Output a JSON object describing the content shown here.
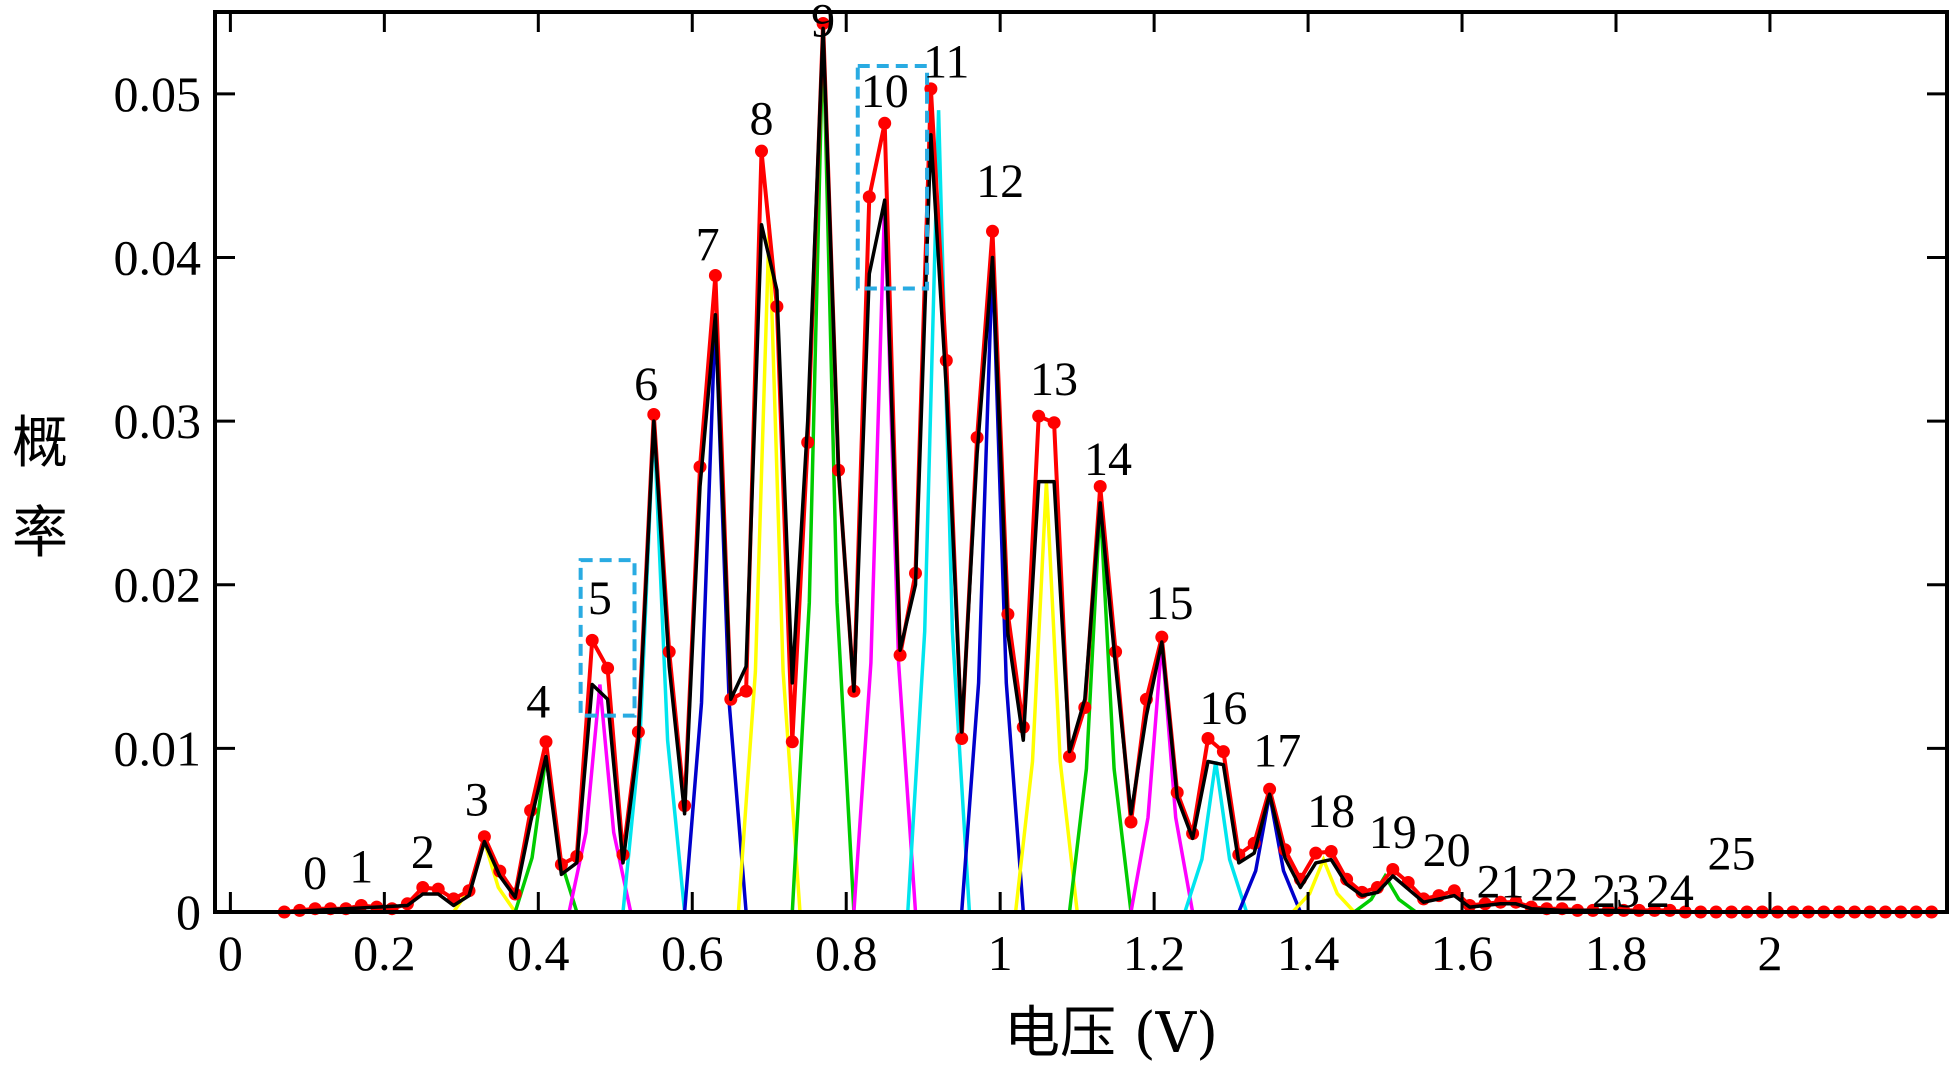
{
  "chart_data": {
    "type": "line",
    "title": "",
    "xlabel": "电压 (V)",
    "ylabel": "概率",
    "xlim": [
      -0.02,
      2.23
    ],
    "ylim": [
      0,
      0.055
    ],
    "x_ticks": [
      0,
      0.2,
      0.4,
      0.6,
      0.8,
      1,
      1.2,
      1.4,
      1.6,
      1.8,
      2
    ],
    "x_tick_labels": [
      "0",
      "0.2",
      "0.4",
      "0.6",
      "0.8",
      "1",
      "1.2",
      "1.4",
      "1.6",
      "1.8",
      "2"
    ],
    "y_ticks": [
      0,
      0.01,
      0.02,
      0.03,
      0.04,
      0.05
    ],
    "y_tick_labels": [
      "0",
      "0.01",
      "0.02",
      "0.03",
      "0.04",
      "0.05"
    ],
    "grid": false,
    "colors": {
      "red": "#ff0000",
      "black": "#000000",
      "box": "#29abe2",
      "components": [
        "#ffff00",
        "#00cc00",
        "#ff00ff",
        "#00e5ee",
        "#0000cc"
      ]
    },
    "series": [
      {
        "name": "red-markers",
        "color": "#ff0000",
        "points": [
          [
            0.07,
            0
          ],
          [
            0.09,
            0.0001
          ],
          [
            0.11,
            0.0002
          ],
          [
            0.13,
            0.0002
          ],
          [
            0.15,
            0.0002
          ],
          [
            0.17,
            0.0004
          ],
          [
            0.19,
            0.0003
          ],
          [
            0.21,
            0.0002
          ],
          [
            0.23,
            0.0005
          ],
          [
            0.25,
            0.0015
          ],
          [
            0.27,
            0.0014
          ],
          [
            0.29,
            0.0008
          ],
          [
            0.31,
            0.0013
          ],
          [
            0.33,
            0.0046
          ],
          [
            0.35,
            0.0025
          ],
          [
            0.37,
            0.0011
          ],
          [
            0.39,
            0.0062
          ],
          [
            0.41,
            0.0104
          ],
          [
            0.43,
            0.0029
          ],
          [
            0.45,
            0.0034
          ],
          [
            0.47,
            0.0166
          ],
          [
            0.49,
            0.0149
          ],
          [
            0.51,
            0.0035
          ],
          [
            0.53,
            0.011
          ],
          [
            0.55,
            0.0304
          ],
          [
            0.57,
            0.0159
          ],
          [
            0.59,
            0.0065
          ],
          [
            0.61,
            0.0272
          ],
          [
            0.63,
            0.0389
          ],
          [
            0.65,
            0.013
          ],
          [
            0.67,
            0.0135
          ],
          [
            0.69,
            0.0465
          ],
          [
            0.71,
            0.037
          ],
          [
            0.73,
            0.0104
          ],
          [
            0.75,
            0.0287
          ],
          [
            0.77,
            0.0543
          ],
          [
            0.79,
            0.027
          ],
          [
            0.81,
            0.0135
          ],
          [
            0.83,
            0.0437
          ],
          [
            0.85,
            0.0482
          ],
          [
            0.87,
            0.0157
          ],
          [
            0.89,
            0.0207
          ],
          [
            0.91,
            0.0503
          ],
          [
            0.93,
            0.0337
          ],
          [
            0.95,
            0.0106
          ],
          [
            0.97,
            0.029
          ],
          [
            0.99,
            0.0416
          ],
          [
            1.01,
            0.0182
          ],
          [
            1.03,
            0.0113
          ],
          [
            1.05,
            0.0303
          ],
          [
            1.07,
            0.0299
          ],
          [
            1.09,
            0.0095
          ],
          [
            1.11,
            0.0125
          ],
          [
            1.13,
            0.026
          ],
          [
            1.15,
            0.0159
          ],
          [
            1.17,
            0.0055
          ],
          [
            1.19,
            0.013
          ],
          [
            1.21,
            0.0168
          ],
          [
            1.23,
            0.0073
          ],
          [
            1.25,
            0.0048
          ],
          [
            1.27,
            0.0106
          ],
          [
            1.29,
            0.0098
          ],
          [
            1.31,
            0.0035
          ],
          [
            1.33,
            0.0042
          ],
          [
            1.35,
            0.0075
          ],
          [
            1.37,
            0.0038
          ],
          [
            1.39,
            0.002
          ],
          [
            1.41,
            0.0036
          ],
          [
            1.43,
            0.0037
          ],
          [
            1.45,
            0.002
          ],
          [
            1.47,
            0.0012
          ],
          [
            1.49,
            0.0015
          ],
          [
            1.51,
            0.0026
          ],
          [
            1.53,
            0.0018
          ],
          [
            1.55,
            0.0008
          ],
          [
            1.57,
            0.001
          ],
          [
            1.59,
            0.0013
          ],
          [
            1.61,
            0.0004
          ],
          [
            1.63,
            0.0005
          ],
          [
            1.65,
            0.0006
          ],
          [
            1.67,
            0.0006
          ],
          [
            1.69,
            0.0003
          ],
          [
            1.71,
            0.0002
          ],
          [
            1.73,
            0.0002
          ],
          [
            1.75,
            0.0001
          ],
          [
            1.77,
            0.0001
          ],
          [
            1.79,
            0.0001
          ],
          [
            1.81,
            0.0001
          ],
          [
            1.83,
            0.0001
          ],
          [
            1.85,
            0.0001
          ],
          [
            1.87,
            0.0001
          ],
          [
            1.89,
            0
          ],
          [
            1.91,
            0
          ],
          [
            1.93,
            0
          ],
          [
            1.95,
            0
          ],
          [
            1.97,
            0
          ],
          [
            1.99,
            0
          ],
          [
            2.01,
            0
          ],
          [
            2.03,
            0
          ],
          [
            2.05,
            0
          ],
          [
            2.07,
            0
          ],
          [
            2.09,
            0
          ],
          [
            2.11,
            0
          ],
          [
            2.13,
            0
          ],
          [
            2.15,
            0
          ],
          [
            2.17,
            0
          ],
          [
            2.19,
            0
          ],
          [
            2.21,
            0
          ]
        ]
      },
      {
        "name": "black-fit",
        "color": "#000000",
        "points": [
          [
            0.07,
            0
          ],
          [
            0.11,
            0.0001
          ],
          [
            0.15,
            0.0002
          ],
          [
            0.19,
            0.0003
          ],
          [
            0.23,
            0.0004
          ],
          [
            0.25,
            0.0011
          ],
          [
            0.27,
            0.0011
          ],
          [
            0.29,
            0.0004
          ],
          [
            0.31,
            0.001
          ],
          [
            0.33,
            0.0043
          ],
          [
            0.35,
            0.0022
          ],
          [
            0.37,
            0.0009
          ],
          [
            0.39,
            0.0055
          ],
          [
            0.41,
            0.0095
          ],
          [
            0.43,
            0.0023
          ],
          [
            0.45,
            0.003
          ],
          [
            0.47,
            0.0139
          ],
          [
            0.49,
            0.013
          ],
          [
            0.51,
            0.003
          ],
          [
            0.53,
            0.0105
          ],
          [
            0.55,
            0.03
          ],
          [
            0.57,
            0.015
          ],
          [
            0.59,
            0.006
          ],
          [
            0.61,
            0.026
          ],
          [
            0.63,
            0.0365
          ],
          [
            0.65,
            0.013
          ],
          [
            0.67,
            0.015
          ],
          [
            0.69,
            0.042
          ],
          [
            0.71,
            0.038
          ],
          [
            0.73,
            0.014
          ],
          [
            0.75,
            0.03
          ],
          [
            0.77,
            0.054
          ],
          [
            0.79,
            0.027
          ],
          [
            0.81,
            0.0135
          ],
          [
            0.83,
            0.039
          ],
          [
            0.85,
            0.0435
          ],
          [
            0.87,
            0.016
          ],
          [
            0.89,
            0.02
          ],
          [
            0.91,
            0.0475
          ],
          [
            0.93,
            0.032
          ],
          [
            0.95,
            0.011
          ],
          [
            0.97,
            0.028
          ],
          [
            0.99,
            0.04
          ],
          [
            1.01,
            0.017
          ],
          [
            1.03,
            0.0105
          ],
          [
            1.05,
            0.0263
          ],
          [
            1.07,
            0.0263
          ],
          [
            1.09,
            0.0098
          ],
          [
            1.11,
            0.013
          ],
          [
            1.13,
            0.025
          ],
          [
            1.15,
            0.015
          ],
          [
            1.17,
            0.006
          ],
          [
            1.19,
            0.012
          ],
          [
            1.21,
            0.0165
          ],
          [
            1.23,
            0.007
          ],
          [
            1.25,
            0.0045
          ],
          [
            1.27,
            0.0092
          ],
          [
            1.29,
            0.009
          ],
          [
            1.31,
            0.003
          ],
          [
            1.33,
            0.0036
          ],
          [
            1.35,
            0.0072
          ],
          [
            1.37,
            0.0033
          ],
          [
            1.39,
            0.0015
          ],
          [
            1.41,
            0.003
          ],
          [
            1.43,
            0.0032
          ],
          [
            1.45,
            0.0017
          ],
          [
            1.47,
            0.001
          ],
          [
            1.49,
            0.0012
          ],
          [
            1.51,
            0.0022
          ],
          [
            1.53,
            0.0014
          ],
          [
            1.55,
            0.0006
          ],
          [
            1.57,
            0.0008
          ],
          [
            1.59,
            0.001
          ],
          [
            1.61,
            0.0003
          ],
          [
            1.63,
            0.0004
          ],
          [
            1.65,
            0.0005
          ],
          [
            1.67,
            0.0005
          ],
          [
            1.69,
            0.0002
          ],
          [
            1.73,
            0.0001
          ],
          [
            1.79,
            0.0001
          ],
          [
            1.85,
            0
          ],
          [
            2.21,
            0
          ]
        ]
      }
    ],
    "component_peaks": [
      {
        "x": 0.33,
        "y": 0.0043
      },
      {
        "x": 0.41,
        "y": 0.0095
      },
      {
        "x": 0.48,
        "y": 0.0139
      },
      {
        "x": 0.55,
        "y": 0.03
      },
      {
        "x": 0.63,
        "y": 0.0365
      },
      {
        "x": 0.7,
        "y": 0.042
      },
      {
        "x": 0.77,
        "y": 0.054
      },
      {
        "x": 0.85,
        "y": 0.0435
      },
      {
        "x": 0.92,
        "y": 0.049
      },
      {
        "x": 0.99,
        "y": 0.04
      },
      {
        "x": 1.06,
        "y": 0.0263
      },
      {
        "x": 1.13,
        "y": 0.025
      },
      {
        "x": 1.21,
        "y": 0.0165
      },
      {
        "x": 1.28,
        "y": 0.0092
      },
      {
        "x": 1.35,
        "y": 0.0072
      },
      {
        "x": 1.42,
        "y": 0.0032
      },
      {
        "x": 1.5,
        "y": 0.0022
      }
    ],
    "peak_labels": [
      {
        "text": "0",
        "x": 0.11,
        "y": 0.0014
      },
      {
        "text": "1",
        "x": 0.17,
        "y": 0.0018
      },
      {
        "text": "2",
        "x": 0.25,
        "y": 0.0027
      },
      {
        "text": "3",
        "x": 0.32,
        "y": 0.0059
      },
      {
        "text": "4",
        "x": 0.4,
        "y": 0.0119
      },
      {
        "text": "5",
        "x": 0.48,
        "y": 0.0182
      },
      {
        "text": "6",
        "x": 0.54,
        "y": 0.0313
      },
      {
        "text": "7",
        "x": 0.62,
        "y": 0.0398
      },
      {
        "text": "8",
        "x": 0.69,
        "y": 0.0475
      },
      {
        "text": "9",
        "x": 0.77,
        "y": 0.0535
      },
      {
        "text": "10",
        "x": 0.85,
        "y": 0.0492
      },
      {
        "text": "11",
        "x": 0.93,
        "y": 0.051
      },
      {
        "text": "12",
        "x": 1.0,
        "y": 0.0437
      },
      {
        "text": "13",
        "x": 1.07,
        "y": 0.0316
      },
      {
        "text": "14",
        "x": 1.14,
        "y": 0.0267
      },
      {
        "text": "15",
        "x": 1.22,
        "y": 0.0179
      },
      {
        "text": "16",
        "x": 1.29,
        "y": 0.0115
      },
      {
        "text": "17",
        "x": 1.36,
        "y": 0.0089
      },
      {
        "text": "18",
        "x": 1.43,
        "y": 0.0052
      },
      {
        "text": "19",
        "x": 1.51,
        "y": 0.0039
      },
      {
        "text": "20",
        "x": 1.58,
        "y": 0.0028
      },
      {
        "text": "21",
        "x": 1.65,
        "y": 0.0009
      },
      {
        "text": "22",
        "x": 1.72,
        "y": 0.0007
      },
      {
        "text": "23",
        "x": 1.8,
        "y": 0.0003
      },
      {
        "text": "24",
        "x": 1.87,
        "y": 0.0003
      },
      {
        "text": "25",
        "x": 1.95,
        "y": 0.0026
      }
    ],
    "highlight_boxes": [
      {
        "label": "5",
        "x0": 0.455,
        "x1": 0.525,
        "y0": 0.012,
        "y1": 0.0215
      },
      {
        "label": "10",
        "x0": 0.815,
        "x1": 0.905,
        "y0": 0.0381,
        "y1": 0.0517
      }
    ]
  }
}
